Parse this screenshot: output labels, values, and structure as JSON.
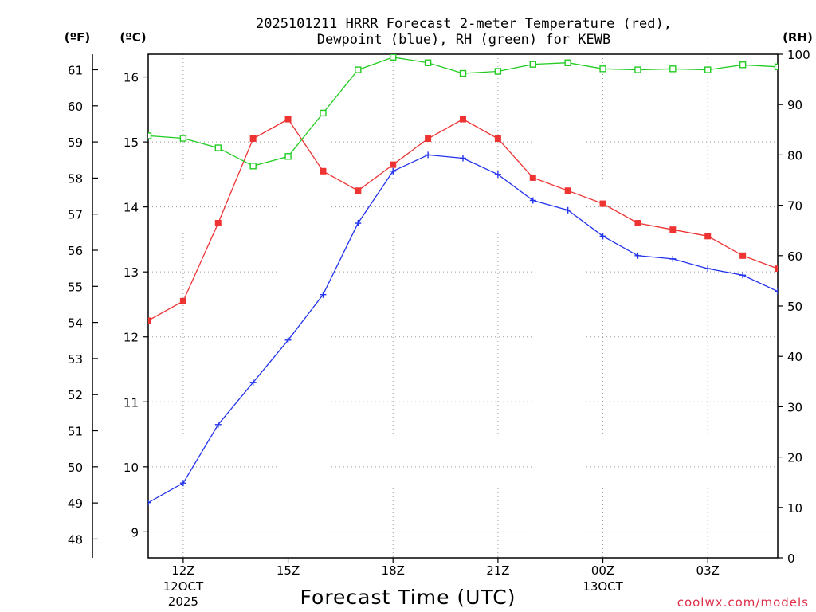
{
  "chart_data": {
    "type": "line",
    "title_line1": "2025101211 HRRR Forecast 2-meter Temperature (red),",
    "title_line2": "Dewpoint (blue), RH (green) for KEWB",
    "xlabel": "Forecast Time (UTC)",
    "credit": "coolwx.com/models",
    "units": {
      "fahrenheit": "(ºF)",
      "celsius": "(ºC)",
      "rh": "(RH)"
    },
    "x_hours": [
      11,
      12,
      13,
      14,
      15,
      16,
      17,
      18,
      19,
      20,
      21,
      22,
      23,
      24,
      25,
      26,
      27,
      28,
      29
    ],
    "x_ticks": [
      {
        "hour": 12,
        "label": "12Z",
        "sub1": "12OCT",
        "sub2": "2025"
      },
      {
        "hour": 15,
        "label": "15Z",
        "sub1": "",
        "sub2": ""
      },
      {
        "hour": 18,
        "label": "18Z",
        "sub1": "",
        "sub2": ""
      },
      {
        "hour": 21,
        "label": "21Z",
        "sub1": "",
        "sub2": ""
      },
      {
        "hour": 24,
        "label": "00Z",
        "sub1": "13OCT",
        "sub2": ""
      },
      {
        "hour": 27,
        "label": "03Z",
        "sub1": "",
        "sub2": ""
      }
    ],
    "c_range": [
      8.6,
      16.35
    ],
    "c_ticks": [
      "9",
      "10",
      "11",
      "12",
      "13",
      "14",
      "15",
      "16"
    ],
    "f_range": [
      47.48,
      61.43
    ],
    "f_ticks": [
      "48",
      "49",
      "50",
      "51",
      "52",
      "53",
      "54",
      "55",
      "56",
      "57",
      "58",
      "59",
      "60",
      "61"
    ],
    "rh_range": [
      0,
      100
    ],
    "rh_ticks": [
      "0",
      "10",
      "20",
      "30",
      "40",
      "50",
      "60",
      "70",
      "80",
      "90",
      "100"
    ],
    "series": [
      {
        "name": "2-meter Temperature",
        "color": "#ee3333",
        "marker": "filled-square",
        "values_c": [
          12.25,
          12.55,
          13.75,
          15.05,
          15.35,
          14.55,
          14.25,
          14.65,
          15.05,
          15.35,
          15.05,
          14.45,
          14.25,
          14.05,
          13.75,
          13.65,
          13.55,
          13.25,
          13.05
        ]
      },
      {
        "name": "Dewpoint",
        "color": "#2233ee",
        "marker": "plus",
        "values_c": [
          9.45,
          9.75,
          10.65,
          11.3,
          11.95,
          12.65,
          13.75,
          14.55,
          14.8,
          14.75,
          14.5,
          14.1,
          13.95,
          13.55,
          13.25,
          13.2,
          13.05,
          12.95,
          12.7
        ]
      },
      {
        "name": "RH",
        "color": "#22cc22",
        "marker": "open-square",
        "values_rh": [
          83.8,
          83.3,
          81.4,
          77.8,
          79.7,
          88.3,
          96.9,
          99.4,
          98.3,
          96.2,
          96.6,
          98.0,
          98.3,
          97.1,
          96.9,
          97.1,
          96.9,
          97.9,
          97.5
        ]
      }
    ]
  }
}
